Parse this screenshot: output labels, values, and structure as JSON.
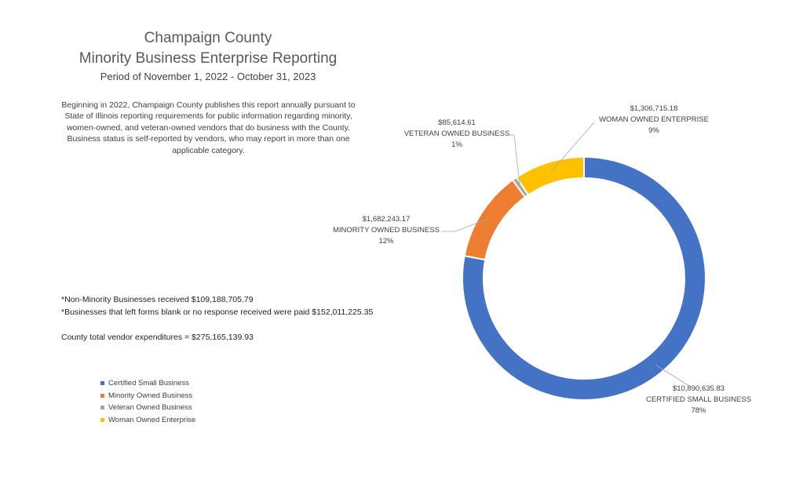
{
  "header": {
    "title_line1": "Champaign County",
    "title_line2": "Minority Business Enterprise Reporting",
    "subtitle": "Period of November 1, 2022 - October 31, 2023"
  },
  "description": "Beginning in 2022, Champaign County publishes this report annually pursuant to State of Illinois reporting requirements for public information regarding minority, women-owned, and veteran-owned vendors that do business with the County. Business status is self-reported by vendors, who may report in more than one applicable category.",
  "notes": {
    "non_minority": "*Non-Minority Businesses received $109,188,705.79",
    "blank_forms": "*Businesses that left forms blank or no response received were paid $152,011,225.35",
    "total": "County total vendor expenditures = $275,165,139.93"
  },
  "chart_data": {
    "type": "pie",
    "donut": true,
    "start_angle_deg": 0,
    "legend_position": "bottom-left",
    "slices": [
      {
        "name": "Certified Small Business",
        "label": "CERTIFIED SMALL BUSINESS",
        "value": 10890635.83,
        "value_label": "$10,890,635.83",
        "percent_label": "78%",
        "color": "#4472C4"
      },
      {
        "name": "Minority Owned Business",
        "label": "MINORITY OWNED BUSINESS",
        "value": 1682243.17,
        "value_label": "$1,682,243.17",
        "percent_label": "12%",
        "color": "#ED7D31"
      },
      {
        "name": "Veteran Owned Business",
        "label": "VETERAN OWNED BUSINESS",
        "value": 85614.61,
        "value_label": "$85,614.61",
        "percent_label": "1%",
        "color": "#A5A5A5"
      },
      {
        "name": "Woman Owned Enterprise",
        "label": "WOMAN OWNED ENTERPRISE",
        "value": 1306715.18,
        "value_label": "$1,306,715.18",
        "percent_label": "9%",
        "color": "#FFC000"
      }
    ]
  }
}
